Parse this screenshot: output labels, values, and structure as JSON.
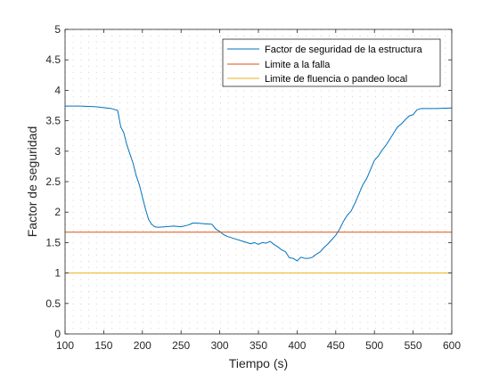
{
  "chart_data": {
    "type": "line",
    "title": "",
    "xlabel": "Tiempo (s)",
    "ylabel": "Factor de seguridad",
    "xlim": [
      100,
      600
    ],
    "ylim": [
      0,
      5
    ],
    "xticks": [
      100,
      150,
      200,
      250,
      300,
      350,
      400,
      450,
      500,
      550,
      600
    ],
    "yticks": [
      0,
      0.5,
      1,
      1.5,
      2,
      2.5,
      3,
      3.5,
      4,
      4.5,
      5
    ],
    "xtick_labels": [
      "100",
      "150",
      "200",
      "250",
      "300",
      "350",
      "400",
      "450",
      "500",
      "550",
      "600"
    ],
    "ytick_labels": [
      "0",
      "0.5",
      "1",
      "1.5",
      "2",
      "2.5",
      "3",
      "3.5",
      "4",
      "4.5",
      "5"
    ],
    "grid": "minor dotted",
    "legend_position": "top-right",
    "series": [
      {
        "name": "Factor de seguridad de la estructura",
        "color": "#0072BD",
        "x": [
          100,
          120,
          140,
          160,
          168,
          172,
          176,
          180,
          184,
          188,
          192,
          196,
          200,
          204,
          208,
          212,
          216,
          220,
          230,
          240,
          250,
          260,
          265,
          270,
          280,
          290,
          295,
          300,
          305,
          310,
          315,
          320,
          330,
          340,
          345,
          350,
          355,
          360,
          365,
          370,
          375,
          380,
          385,
          390,
          395,
          400,
          405,
          410,
          415,
          420,
          425,
          430,
          435,
          440,
          445,
          450,
          455,
          460,
          465,
          470,
          475,
          480,
          485,
          490,
          495,
          500,
          505,
          510,
          515,
          520,
          525,
          530,
          535,
          540,
          545,
          550,
          555,
          560,
          580,
          600
        ],
        "y": [
          3.74,
          3.74,
          3.73,
          3.7,
          3.67,
          3.4,
          3.3,
          3.1,
          2.95,
          2.8,
          2.6,
          2.45,
          2.25,
          2.05,
          1.88,
          1.8,
          1.76,
          1.75,
          1.76,
          1.77,
          1.76,
          1.79,
          1.82,
          1.82,
          1.81,
          1.8,
          1.72,
          1.68,
          1.63,
          1.6,
          1.58,
          1.56,
          1.52,
          1.48,
          1.5,
          1.47,
          1.5,
          1.49,
          1.52,
          1.47,
          1.43,
          1.38,
          1.35,
          1.25,
          1.24,
          1.2,
          1.26,
          1.24,
          1.24,
          1.26,
          1.31,
          1.35,
          1.42,
          1.48,
          1.55,
          1.62,
          1.72,
          1.85,
          1.95,
          2.02,
          2.15,
          2.3,
          2.45,
          2.55,
          2.7,
          2.85,
          2.92,
          3.02,
          3.1,
          3.2,
          3.3,
          3.4,
          3.45,
          3.52,
          3.58,
          3.6,
          3.68,
          3.7,
          3.7,
          3.71
        ]
      },
      {
        "name": "Limite a la falla",
        "color": "#D95319",
        "x": [
          100,
          600
        ],
        "y": [
          1.67,
          1.67
        ]
      },
      {
        "name": "Limite de fluencia o pandeo local",
        "color": "#EDB120",
        "x": [
          100,
          600
        ],
        "y": [
          1.0,
          1.0
        ]
      }
    ]
  }
}
